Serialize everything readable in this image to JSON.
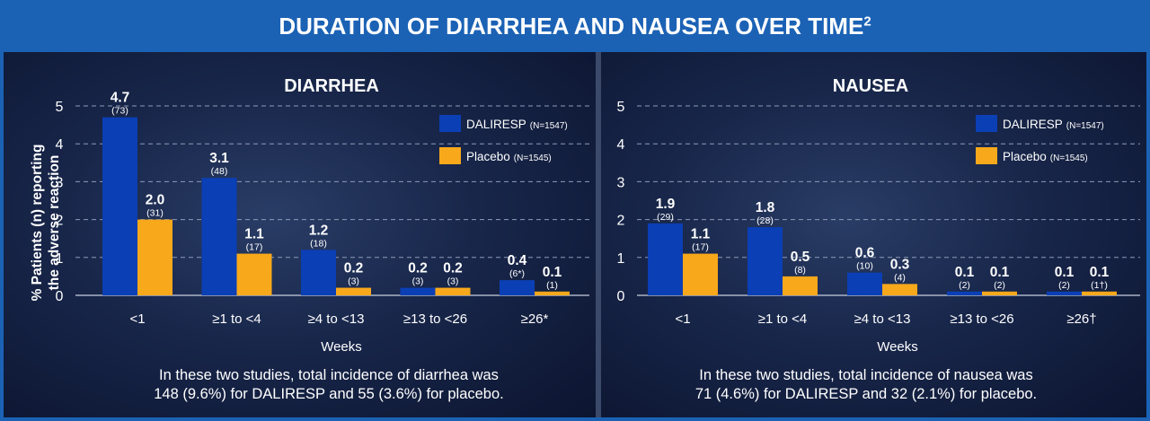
{
  "banner": {
    "title": "DURATION OF DIARRHEA AND NAUSEA OVER TIME",
    "superscript": "2"
  },
  "colors": {
    "dalireps": "#0b3fb5",
    "placebo": "#f7a81b",
    "banner": "#1b62b5"
  },
  "y_axis_label_line1": "% Patients (n) reporting",
  "y_axis_label_line2": "the adverse reaction",
  "chart_data": [
    {
      "type": "bar",
      "title": "DIARRHEA",
      "xlabel": "Weeks",
      "ylabel": "% Patients (n) reporting the adverse reaction",
      "ylim": [
        0,
        5
      ],
      "yticks": [
        "0",
        "1",
        "2",
        "3",
        "4",
        "5"
      ],
      "grid": true,
      "legend_position": "top-right",
      "categories": [
        "<1",
        "≥1 to <4",
        "≥4 to <13",
        "≥13 to <26",
        "≥26*"
      ],
      "series": [
        {
          "name": "DALIRESP",
          "n_label": "(N=1547)",
          "values": [
            4.7,
            3.1,
            1.2,
            0.2,
            0.4
          ],
          "value_labels": [
            "4.7",
            "3.1",
            "1.2",
            "0.2",
            "0.4"
          ],
          "count_labels": [
            "(73)",
            "(48)",
            "(18)",
            "(3)",
            "(6*)"
          ]
        },
        {
          "name": "Placebo",
          "n_label": "(N=1545)",
          "values": [
            2.0,
            1.1,
            0.2,
            0.2,
            0.1
          ],
          "value_labels": [
            "2.0",
            "1.1",
            "0.2",
            "0.2",
            "0.1"
          ],
          "count_labels": [
            "(31)",
            "(17)",
            "(3)",
            "(3)",
            "(1)"
          ]
        }
      ],
      "note_line1": "In these two studies, total incidence of diarrhea was",
      "note_line2": "148 (9.6%) for DALIRESP and 55 (3.6%) for placebo."
    },
    {
      "type": "bar",
      "title": "NAUSEA",
      "xlabel": "Weeks",
      "ylim": [
        0,
        5
      ],
      "yticks": [
        "0",
        "1",
        "2",
        "3",
        "4",
        "5"
      ],
      "grid": true,
      "legend_position": "top-right",
      "categories": [
        "<1",
        "≥1 to <4",
        "≥4 to <13",
        "≥13 to <26",
        "≥26†"
      ],
      "series": [
        {
          "name": "DALIRESP",
          "n_label": "(N=1547)",
          "values": [
            1.9,
            1.8,
            0.6,
            0.1,
            0.1
          ],
          "value_labels": [
            "1.9",
            "1.8",
            "0.6",
            "0.1",
            "0.1"
          ],
          "count_labels": [
            "(29)",
            "(28)",
            "(10)",
            "(2)",
            "(2)"
          ]
        },
        {
          "name": "Placebo",
          "n_label": "(N=1545)",
          "values": [
            1.1,
            0.5,
            0.3,
            0.1,
            0.1
          ],
          "value_labels": [
            "1.1",
            "0.5",
            "0.3",
            "0.1",
            "0.1"
          ],
          "count_labels": [
            "(17)",
            "(8)",
            "(4)",
            "(2)",
            "(1†)"
          ]
        }
      ],
      "note_line1": "In these two studies, total incidence of nausea was",
      "note_line2": "71 (4.6%) for DALIRESP and 32 (2.1%) for placebo."
    }
  ]
}
